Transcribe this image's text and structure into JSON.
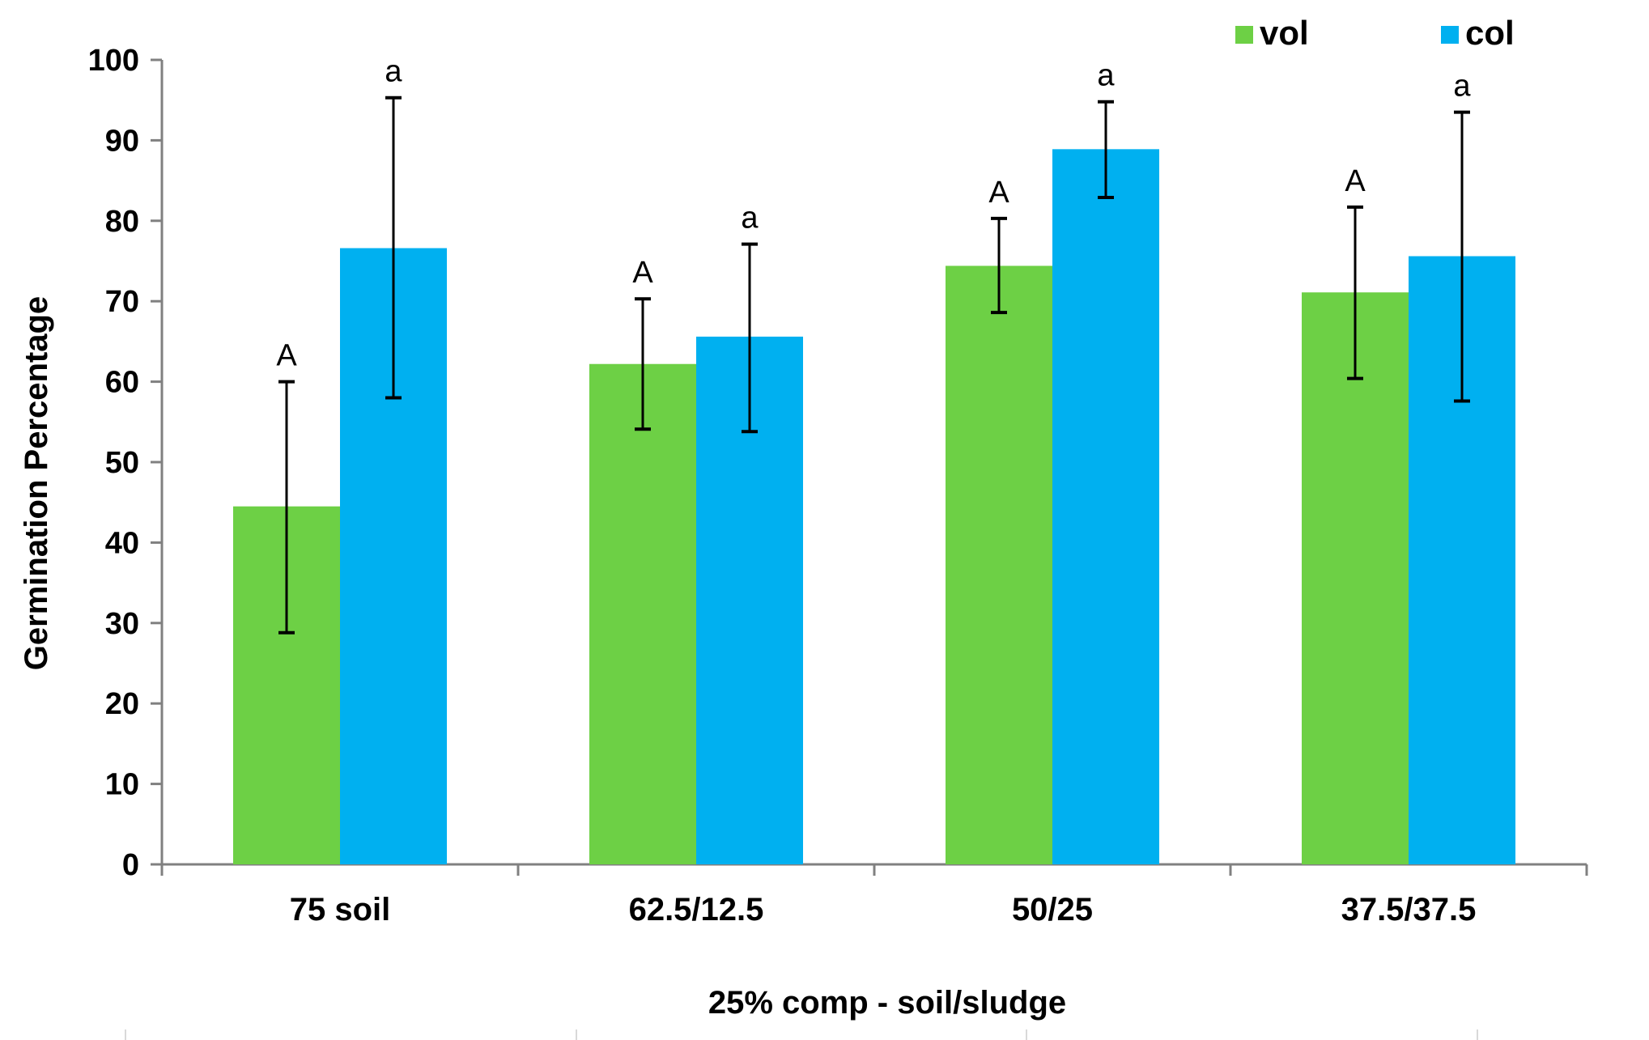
{
  "chart_data": {
    "type": "bar",
    "title": "",
    "xlabel": "25% comp - soil/sludge",
    "ylabel": "Germination Percentage",
    "ylim": [
      0,
      100
    ],
    "yticks": [
      0,
      10,
      20,
      30,
      40,
      50,
      60,
      70,
      80,
      90,
      100
    ],
    "categories": [
      "75 soil",
      "62.5/12.5",
      "50/25",
      "37.5/37.5"
    ],
    "legend_position": "top-right",
    "grid": false,
    "series": [
      {
        "name": "vol",
        "color": "#6dd045",
        "values": [
          44.5,
          62.2,
          74.4,
          71.1
        ],
        "err_low": [
          28.8,
          54.1,
          68.6,
          60.4
        ],
        "err_high": [
          60.0,
          70.3,
          80.3,
          81.7
        ],
        "sig_labels": [
          "A",
          "A",
          "A",
          "A"
        ]
      },
      {
        "name": "col",
        "color": "#00b0f0",
        "values": [
          76.6,
          65.6,
          88.9,
          75.6
        ],
        "err_low": [
          58.0,
          53.8,
          82.9,
          57.6
        ],
        "err_high": [
          95.3,
          77.1,
          94.8,
          93.5
        ],
        "sig_labels": [
          "a",
          "a",
          "a",
          "a"
        ]
      }
    ]
  }
}
